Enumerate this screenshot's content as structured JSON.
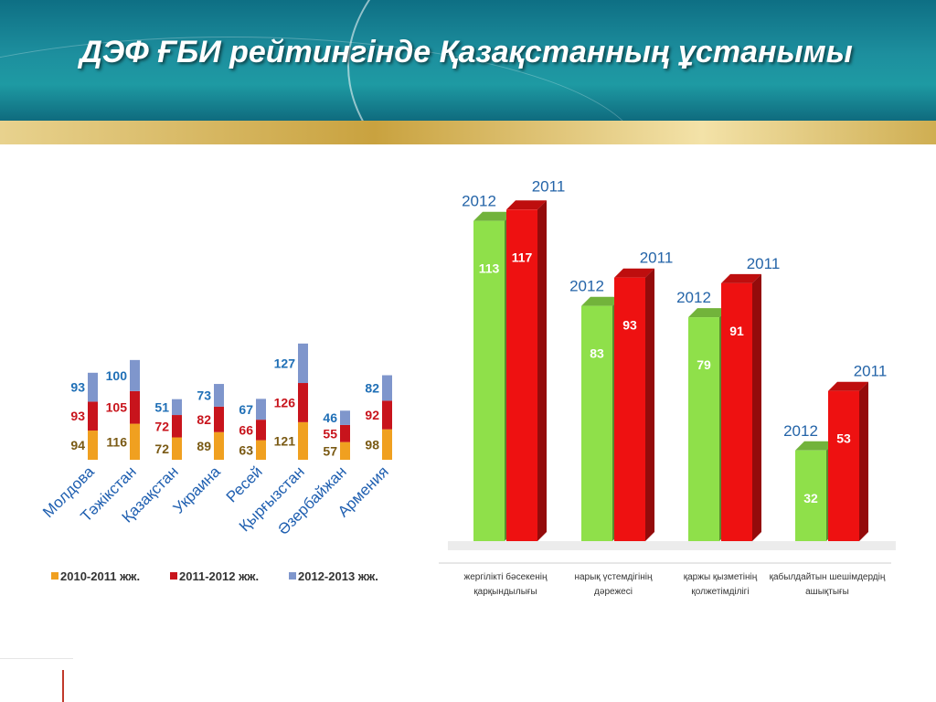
{
  "title": "ДЭФ ҒБИ рейтингінде Қазақстанның ұстанымы",
  "chart_data": [
    {
      "type": "bar",
      "stacked": true,
      "categories": [
        "Молдова",
        "Тәжікстан",
        "Қазақстан",
        "Украина",
        "Ресей",
        "Қырғызстан",
        "Әзербайжан",
        "Армения"
      ],
      "series": [
        {
          "name": "2010-2011 жж.",
          "color": "#f0a020",
          "label_color": "#7a5a14",
          "values": [
            94,
            116,
            72,
            89,
            63,
            121,
            57,
            98
          ]
        },
        {
          "name": "2011-2012 жж.",
          "color": "#c8141c",
          "label_color": "#c8141c",
          "values": [
            93,
            105,
            72,
            82,
            66,
            126,
            55,
            92
          ]
        },
        {
          "name": "2012-2013 жж.",
          "color": "#7f96cc",
          "label_color": "#1f6fb6",
          "values": [
            93,
            100,
            51,
            73,
            67,
            127,
            46,
            82
          ]
        }
      ],
      "legend_position": "bottom"
    },
    {
      "type": "bar",
      "categories": [
        "жергілікті бәсекенің қарқындылығы",
        "нарық үстемдігінің дәрежесі",
        "қаржы қызметінің қолжетімділігі",
        "қабылдайтын шешімдердің ашықтығы"
      ],
      "series": [
        {
          "name": "2012",
          "color": "#8fe04a",
          "values": [
            113,
            83,
            79,
            32
          ]
        },
        {
          "name": "2011",
          "color": "#ee1111",
          "values": [
            117,
            93,
            91,
            53
          ]
        }
      ],
      "ylim": [
        0,
        130
      ]
    }
  ]
}
